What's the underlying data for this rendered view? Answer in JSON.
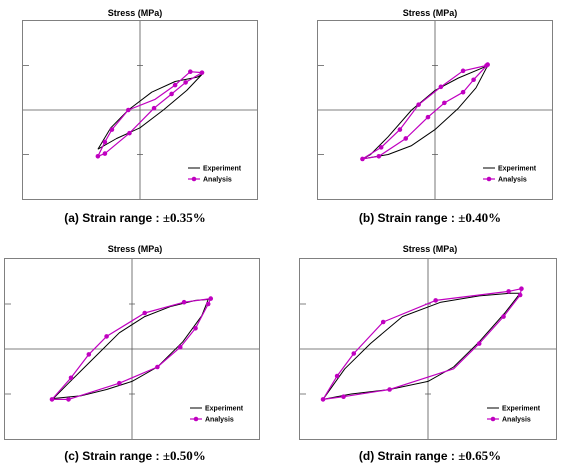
{
  "colors": {
    "experiment": "#000000",
    "analysis": "#c000c0",
    "frame": "#808080",
    "grid": "#c8c8c8"
  },
  "chart_data": [
    {
      "type": "line",
      "title": "Stress (MPa)",
      "caption_prefix": "(a) Strain range :",
      "caption_range": "±0.35%",
      "xlim": [
        -1,
        1
      ],
      "ylim": [
        -1,
        1
      ],
      "grid": true,
      "legend_position": "bottom-right",
      "series": [
        {
          "name": "Experiment",
          "points": [
            [
              -0.36,
              -0.44
            ],
            [
              -0.2,
              -0.32
            ],
            [
              0,
              -0.2
            ],
            [
              0.2,
              0
            ],
            [
              0.4,
              0.22
            ],
            [
              0.53,
              0.4
            ],
            [
              0.49,
              0.37
            ],
            [
              0.3,
              0.32
            ],
            [
              0.1,
              0.2
            ],
            [
              -0.1,
              0
            ],
            [
              -0.25,
              -0.2
            ],
            [
              -0.36,
              -0.44
            ]
          ]
        },
        {
          "name": "Analysis",
          "points": [
            [
              -0.36,
              -0.52
            ],
            [
              -0.3,
              -0.49
            ],
            [
              -0.09,
              -0.26
            ],
            [
              0.12,
              0.02
            ],
            [
              0.27,
              0.18
            ],
            [
              0.39,
              0.31
            ],
            [
              0.53,
              0.42
            ],
            [
              0.43,
              0.43
            ],
            [
              0.3,
              0.28
            ],
            [
              0.13,
              0.12
            ],
            [
              -0.1,
              0.0
            ],
            [
              -0.24,
              -0.22
            ],
            [
              -0.3,
              -0.36
            ],
            [
              -0.36,
              -0.52
            ]
          ],
          "markers": [
            [
              -0.36,
              -0.52
            ],
            [
              -0.3,
              -0.49
            ],
            [
              -0.09,
              -0.26
            ],
            [
              0.12,
              0.02
            ],
            [
              0.27,
              0.18
            ],
            [
              0.39,
              0.31
            ],
            [
              0.43,
              0.43
            ],
            [
              0.53,
              0.42
            ],
            [
              0.3,
              0.28
            ],
            [
              -0.1,
              0.0
            ],
            [
              -0.24,
              -0.22
            ],
            [
              -0.3,
              -0.36
            ]
          ]
        }
      ]
    },
    {
      "type": "line",
      "title": "Stress (MPa)",
      "caption_prefix": "(b) Strain range :",
      "caption_range": "±0.40%",
      "xlim": [
        -1,
        1
      ],
      "ylim": [
        -1,
        1
      ],
      "grid": true,
      "legend_position": "bottom-right",
      "series": [
        {
          "name": "Experiment",
          "points": [
            [
              -0.62,
              -0.55
            ],
            [
              -0.4,
              -0.5
            ],
            [
              -0.2,
              -0.4
            ],
            [
              0,
              -0.22
            ],
            [
              0.2,
              0.02
            ],
            [
              0.35,
              0.25
            ],
            [
              0.45,
              0.5
            ],
            [
              0.4,
              0.47
            ],
            [
              0.2,
              0.36
            ],
            [
              0,
              0.22
            ],
            [
              -0.2,
              0
            ],
            [
              -0.4,
              -0.3
            ],
            [
              -0.55,
              -0.5
            ],
            [
              -0.62,
              -0.55
            ]
          ]
        },
        {
          "name": "Analysis",
          "points": [
            [
              -0.62,
              -0.55
            ],
            [
              -0.48,
              -0.52
            ],
            [
              -0.25,
              -0.32
            ],
            [
              -0.06,
              -0.08
            ],
            [
              0.08,
              0.08
            ],
            [
              0.24,
              0.2
            ],
            [
              0.33,
              0.34
            ],
            [
              0.45,
              0.51
            ],
            [
              0.44,
              0.5
            ],
            [
              0.24,
              0.44
            ],
            [
              0.05,
              0.26
            ],
            [
              -0.14,
              0.06
            ],
            [
              -0.3,
              -0.22
            ],
            [
              -0.46,
              -0.42
            ],
            [
              -0.62,
              -0.55
            ]
          ],
          "markers": [
            [
              -0.62,
              -0.55
            ],
            [
              -0.48,
              -0.52
            ],
            [
              -0.25,
              -0.32
            ],
            [
              -0.06,
              -0.08
            ],
            [
              0.08,
              0.08
            ],
            [
              0.24,
              0.2
            ],
            [
              0.33,
              0.34
            ],
            [
              0.44,
              0.5
            ],
            [
              0.45,
              0.51
            ],
            [
              0.24,
              0.44
            ],
            [
              0.05,
              0.26
            ],
            [
              -0.14,
              0.06
            ],
            [
              -0.3,
              -0.22
            ],
            [
              -0.46,
              -0.42
            ]
          ]
        }
      ]
    },
    {
      "type": "line",
      "title": "Stress (MPa)",
      "caption_prefix": "(c) Strain range :",
      "caption_range": "±0.50%",
      "xlim": [
        -1,
        1
      ],
      "ylim": [
        -1,
        1
      ],
      "grid": true,
      "legend_position": "bottom-right",
      "series": [
        {
          "name": "Experiment",
          "points": [
            [
              -0.62,
              -0.55
            ],
            [
              -0.4,
              -0.52
            ],
            [
              -0.2,
              -0.45
            ],
            [
              0,
              -0.36
            ],
            [
              0.2,
              -0.2
            ],
            [
              0.4,
              0.08
            ],
            [
              0.55,
              0.37
            ],
            [
              0.6,
              0.55
            ],
            [
              0.5,
              0.54
            ],
            [
              0.3,
              0.47
            ],
            [
              0.1,
              0.36
            ],
            [
              -0.1,
              0.18
            ],
            [
              -0.3,
              -0.1
            ],
            [
              -0.5,
              -0.38
            ],
            [
              -0.62,
              -0.55
            ]
          ]
        },
        {
          "name": "Analysis",
          "points": [
            [
              -0.63,
              -0.56
            ],
            [
              -0.5,
              -0.56
            ],
            [
              -0.1,
              -0.38
            ],
            [
              0.2,
              -0.2
            ],
            [
              0.38,
              0.02
            ],
            [
              0.5,
              0.23
            ],
            [
              0.6,
              0.5
            ],
            [
              0.62,
              0.56
            ],
            [
              0.41,
              0.52
            ],
            [
              0.1,
              0.4
            ],
            [
              -0.2,
              0.14
            ],
            [
              -0.34,
              -0.06
            ],
            [
              -0.48,
              -0.32
            ],
            [
              -0.63,
              -0.56
            ]
          ],
          "markers": [
            [
              -0.63,
              -0.56
            ],
            [
              -0.5,
              -0.56
            ],
            [
              -0.1,
              -0.38
            ],
            [
              0.2,
              -0.2
            ],
            [
              0.38,
              0.02
            ],
            [
              0.5,
              0.23
            ],
            [
              0.6,
              0.5
            ],
            [
              0.62,
              0.56
            ],
            [
              0.41,
              0.52
            ],
            [
              0.1,
              0.4
            ],
            [
              -0.2,
              0.14
            ],
            [
              -0.34,
              -0.06
            ],
            [
              -0.48,
              -0.32
            ]
          ]
        }
      ]
    },
    {
      "type": "line",
      "title": "Stress (MPa)",
      "caption_prefix": "(d) Strain range :",
      "caption_range": "±0.65%",
      "xlim": [
        -1,
        1
      ],
      "ylim": [
        -1,
        1
      ],
      "grid": true,
      "legend_position": "bottom-right",
      "series": [
        {
          "name": "Experiment",
          "points": [
            [
              -0.82,
              -0.56
            ],
            [
              -0.6,
              -0.5
            ],
            [
              -0.3,
              -0.45
            ],
            [
              0,
              -0.36
            ],
            [
              0.2,
              -0.2
            ],
            [
              0.4,
              0.08
            ],
            [
              0.6,
              0.4
            ],
            [
              0.72,
              0.62
            ],
            [
              0.65,
              0.62
            ],
            [
              0.4,
              0.59
            ],
            [
              0.1,
              0.52
            ],
            [
              -0.2,
              0.36
            ],
            [
              -0.45,
              0.06
            ],
            [
              -0.65,
              -0.22
            ],
            [
              -0.82,
              -0.56
            ]
          ]
        },
        {
          "name": "Analysis",
          "points": [
            [
              -0.82,
              -0.56
            ],
            [
              -0.66,
              -0.53
            ],
            [
              -0.3,
              -0.45
            ],
            [
              0.2,
              -0.22
            ],
            [
              0.4,
              0.06
            ],
            [
              0.59,
              0.36
            ],
            [
              0.72,
              0.6
            ],
            [
              0.73,
              0.67
            ],
            [
              0.63,
              0.64
            ],
            [
              0.06,
              0.54
            ],
            [
              -0.35,
              0.3
            ],
            [
              -0.58,
              -0.05
            ],
            [
              -0.71,
              -0.3
            ],
            [
              -0.82,
              -0.56
            ]
          ],
          "markers": [
            [
              -0.82,
              -0.56
            ],
            [
              -0.66,
              -0.53
            ],
            [
              -0.3,
              -0.45
            ],
            [
              0.4,
              0.06
            ],
            [
              0.59,
              0.36
            ],
            [
              0.72,
              0.6
            ],
            [
              0.73,
              0.67
            ],
            [
              0.63,
              0.64
            ],
            [
              0.06,
              0.54
            ],
            [
              -0.35,
              0.3
            ],
            [
              -0.58,
              -0.05
            ],
            [
              -0.71,
              -0.3
            ]
          ]
        }
      ]
    }
  ]
}
